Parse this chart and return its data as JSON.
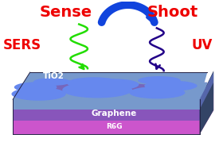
{
  "title_left": "Sense",
  "title_right": "Shoot",
  "label_left": "SERS",
  "label_right": "UV",
  "label_tio2": "TiO2",
  "label_graphene": "Graphene",
  "label_r6g": "R6G",
  "color_red": "#ee0000",
  "color_green_wave": "#22dd00",
  "color_blue_wave": "#220088",
  "color_blue_arrow": "#1144dd",
  "color_tio2_top": "#7799cc",
  "color_tio2_islands": "#6688ee",
  "color_graphene_top": "#7755bb",
  "color_graphene_front": "#8855bb",
  "color_graphene_right": "#5533aa",
  "color_r6g_front": "#cc55cc",
  "color_r6g_top": "#bb44bb",
  "color_box_right_dark": "#223366",
  "color_box_side_gray": "#888899",
  "background": "#ffffff"
}
